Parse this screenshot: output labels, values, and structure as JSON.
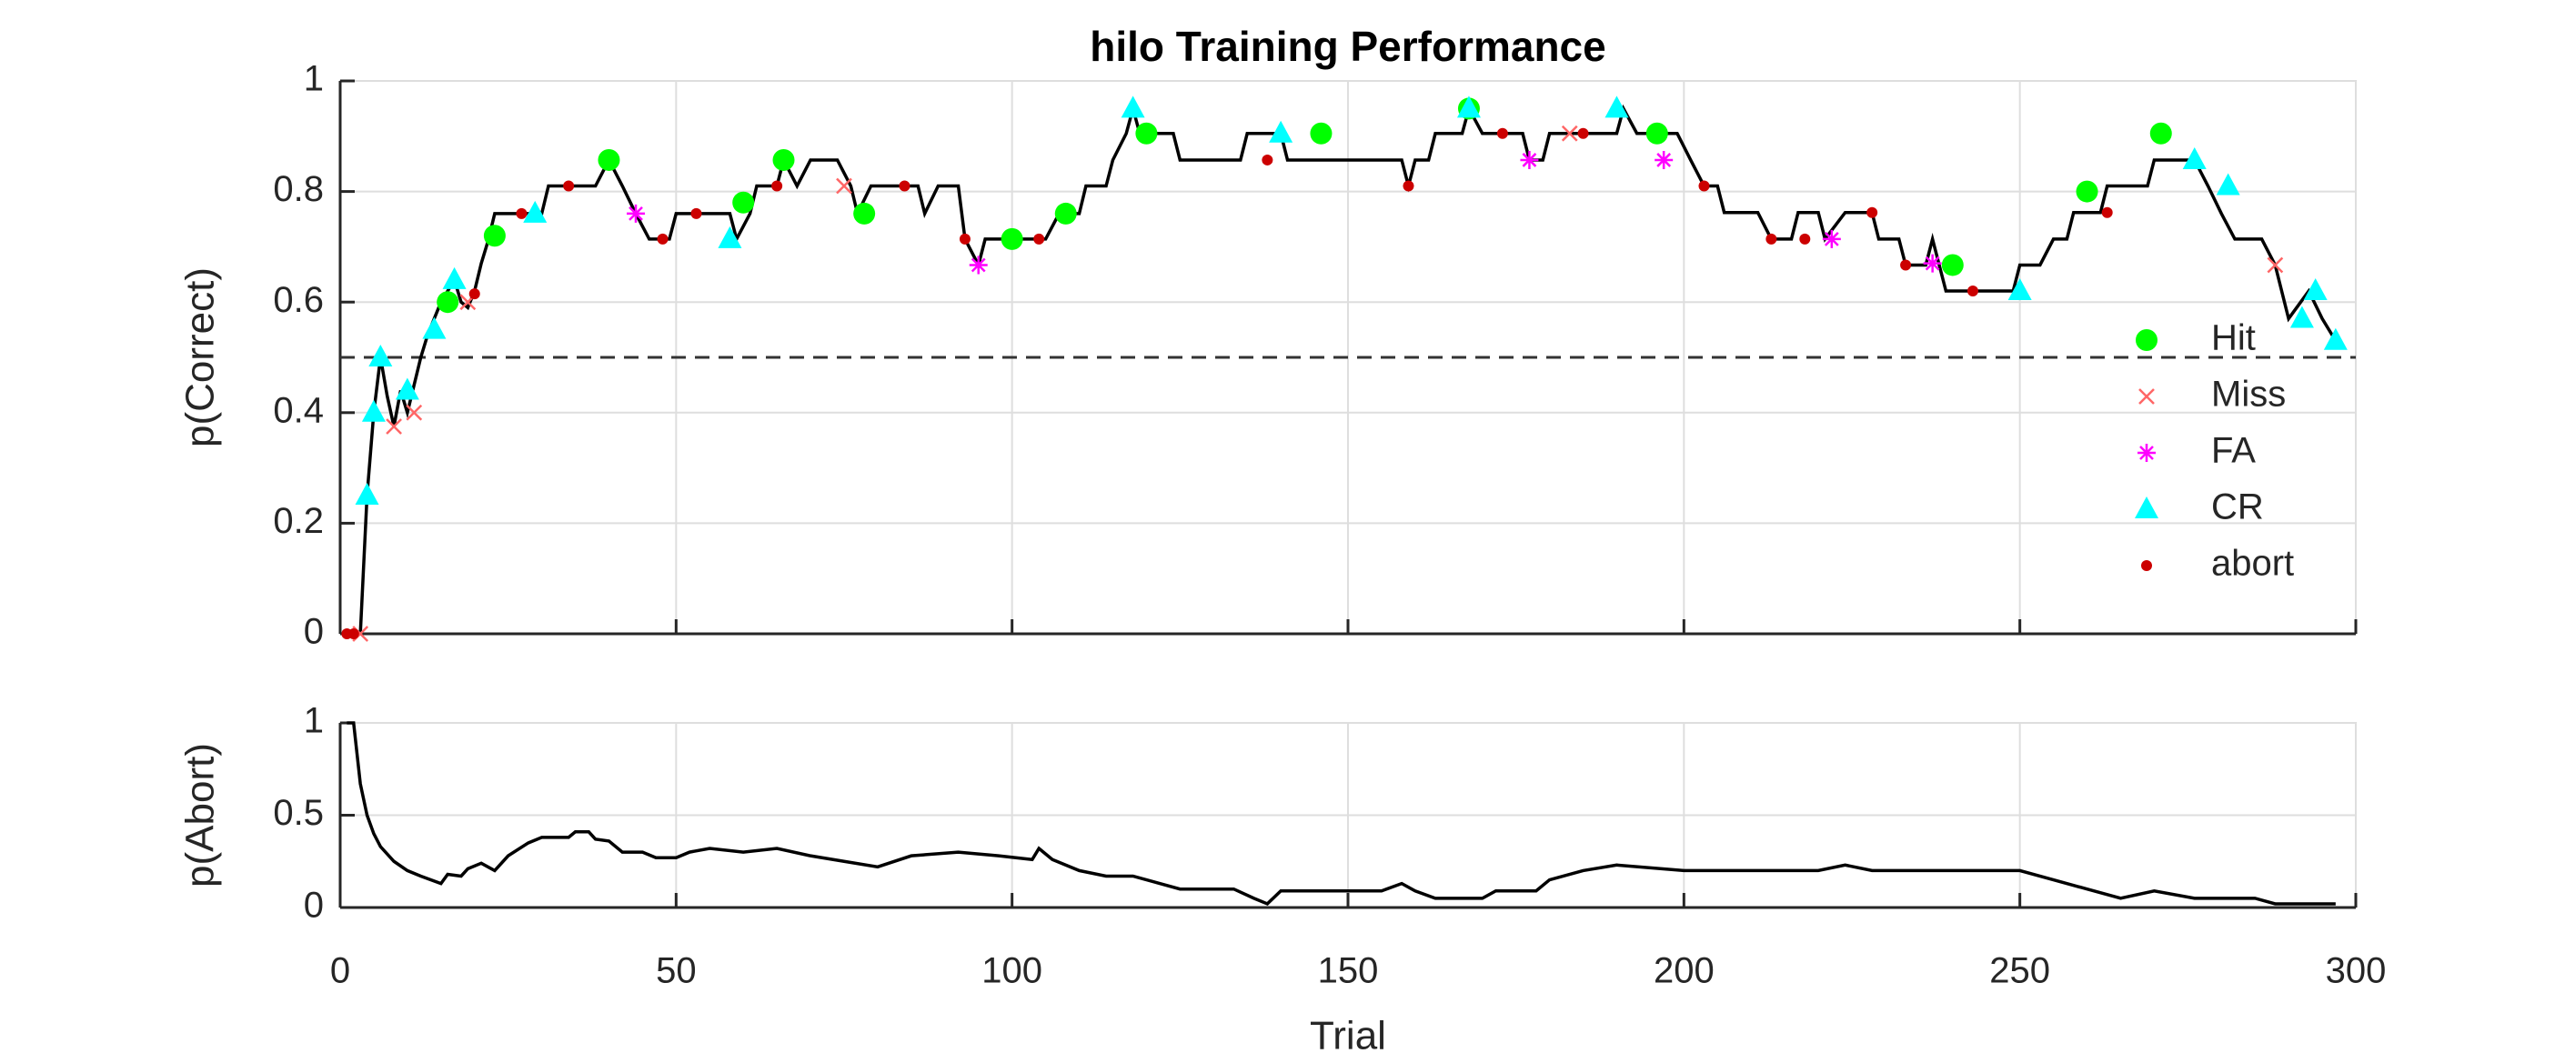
{
  "chart_data": [
    {
      "type": "line",
      "title": "hilo Training Performance",
      "ylabel": "p(Correct)",
      "color": "#000000",
      "grid": true,
      "hline": 0.5,
      "xlim": [
        0,
        300
      ],
      "xticks": [
        0,
        50,
        100,
        150,
        200,
        250,
        300
      ],
      "ylim": [
        0,
        1
      ],
      "yticks": [
        0,
        0.2,
        0.4,
        0.6,
        0.8,
        1
      ],
      "x": [
        1,
        3,
        4,
        5,
        6,
        7,
        8,
        9,
        10,
        11,
        12,
        13,
        14,
        15,
        16,
        17,
        18,
        19,
        20,
        21,
        22,
        23,
        30,
        31,
        38,
        40,
        42,
        44,
        46,
        49,
        50,
        58,
        59,
        61,
        62,
        65,
        66,
        68,
        70,
        74,
        76,
        77,
        79,
        86,
        87,
        89,
        92,
        93,
        95,
        96,
        105,
        107,
        110,
        111,
        114,
        115,
        117,
        118,
        119,
        124,
        125,
        134,
        135,
        140,
        141,
        158,
        159,
        160,
        162,
        163,
        167,
        168,
        170,
        176,
        177,
        179,
        180,
        190,
        191,
        193,
        199,
        201,
        203,
        205,
        206,
        211,
        213,
        216,
        217,
        220,
        221,
        224,
        228,
        229,
        232,
        233,
        236,
        237,
        239,
        249,
        250,
        253,
        255,
        257,
        258,
        262,
        263,
        269,
        270,
        276,
        278,
        280,
        282,
        286,
        288,
        290,
        293,
        295,
        297
      ],
      "values": [
        0,
        0,
        0.25,
        0.4,
        0.5,
        0.43,
        0.375,
        0.44,
        0.4,
        0.45,
        0.5,
        0.54,
        0.57,
        0.6,
        0.62,
        0.64,
        0.6,
        0.59,
        0.62,
        0.67,
        0.71,
        0.76,
        0.76,
        0.81,
        0.81,
        0.857,
        0.81,
        0.76,
        0.714,
        0.714,
        0.76,
        0.76,
        0.714,
        0.76,
        0.81,
        0.81,
        0.857,
        0.81,
        0.857,
        0.857,
        0.81,
        0.76,
        0.81,
        0.81,
        0.76,
        0.81,
        0.81,
        0.714,
        0.667,
        0.714,
        0.714,
        0.76,
        0.76,
        0.81,
        0.81,
        0.857,
        0.905,
        0.95,
        0.905,
        0.905,
        0.857,
        0.857,
        0.905,
        0.905,
        0.857,
        0.857,
        0.81,
        0.857,
        0.857,
        0.905,
        0.905,
        0.95,
        0.905,
        0.905,
        0.857,
        0.857,
        0.905,
        0.905,
        0.95,
        0.905,
        0.905,
        0.857,
        0.81,
        0.81,
        0.762,
        0.762,
        0.714,
        0.714,
        0.762,
        0.762,
        0.714,
        0.762,
        0.762,
        0.714,
        0.714,
        0.667,
        0.667,
        0.714,
        0.62,
        0.62,
        0.667,
        0.667,
        0.714,
        0.714,
        0.762,
        0.762,
        0.81,
        0.81,
        0.857,
        0.857,
        0.81,
        0.76,
        0.714,
        0.714,
        0.667,
        0.57,
        0.62,
        0.57,
        0.53
      ],
      "series": [
        {
          "name": "Hit",
          "color": "#00ff00",
          "marker": "circle",
          "x": [
            16,
            23,
            40,
            60,
            66,
            78,
            100,
            108,
            120,
            146,
            168,
            196,
            240,
            260,
            271
          ],
          "values": [
            0.6,
            0.72,
            0.857,
            0.78,
            0.857,
            0.76,
            0.714,
            0.76,
            0.905,
            0.905,
            0.95,
            0.905,
            0.667,
            0.8,
            0.905
          ]
        },
        {
          "name": "Miss",
          "color": "#ff6666",
          "marker": "x",
          "x": [
            3,
            8,
            11,
            19,
            75,
            183,
            288
          ],
          "values": [
            0,
            0.375,
            0.4,
            0.6,
            0.81,
            0.905,
            0.667
          ]
        },
        {
          "name": "FA",
          "color": "#ff00ff",
          "marker": "star",
          "x": [
            44,
            95,
            177,
            197,
            222,
            237
          ],
          "values": [
            0.76,
            0.667,
            0.857,
            0.857,
            0.714,
            0.67
          ]
        },
        {
          "name": "CR",
          "color": "#00ffff",
          "marker": "triangle",
          "x": [
            4,
            5,
            6,
            10,
            14,
            17,
            29,
            58,
            118,
            140,
            168,
            190,
            250,
            276,
            281,
            292,
            294,
            297
          ],
          "values": [
            0.25,
            0.4,
            0.5,
            0.44,
            0.55,
            0.64,
            0.76,
            0.714,
            0.95,
            0.905,
            0.95,
            0.95,
            0.62,
            0.857,
            0.81,
            0.57,
            0.62,
            0.53
          ]
        },
        {
          "name": "abort",
          "color": "#cc0000",
          "marker": "dot",
          "x": [
            1,
            2,
            20,
            27,
            34,
            48,
            53,
            65,
            84,
            93,
            104,
            138,
            159,
            173,
            185,
            203,
            213,
            218,
            228,
            233,
            243,
            263
          ],
          "values": [
            0,
            0,
            0.615,
            0.76,
            0.81,
            0.714,
            0.76,
            0.81,
            0.81,
            0.714,
            0.714,
            0.857,
            0.81,
            0.905,
            0.905,
            0.81,
            0.714,
            0.714,
            0.762,
            0.667,
            0.62,
            0.762
          ]
        }
      ]
    },
    {
      "type": "line",
      "xlabel": "Trial",
      "ylabel": "p(Abort)",
      "color": "#000000",
      "grid": true,
      "xlim": [
        0,
        300
      ],
      "xticks": [
        0,
        50,
        100,
        150,
        200,
        250,
        300
      ],
      "ylim": [
        0,
        1
      ],
      "yticks": [
        0,
        0.5,
        1
      ],
      "x": [
        1,
        2,
        3,
        4,
        5,
        6,
        8,
        10,
        12,
        15,
        16,
        18,
        19,
        21,
        23,
        25,
        28,
        30,
        34,
        35,
        37,
        38,
        40,
        42,
        45,
        47,
        50,
        52,
        55,
        60,
        65,
        70,
        75,
        80,
        85,
        92,
        98,
        103,
        104,
        106,
        110,
        114,
        118,
        125,
        133,
        136,
        138,
        140,
        155,
        158,
        160,
        163,
        170,
        172,
        178,
        180,
        185,
        190,
        200,
        210,
        220,
        224,
        228,
        240,
        250,
        255,
        260,
        265,
        270,
        276,
        285,
        288,
        297
      ],
      "values": [
        1,
        1,
        0.67,
        0.5,
        0.4,
        0.33,
        0.25,
        0.2,
        0.17,
        0.13,
        0.18,
        0.17,
        0.21,
        0.24,
        0.2,
        0.28,
        0.35,
        0.38,
        0.38,
        0.41,
        0.41,
        0.37,
        0.36,
        0.3,
        0.3,
        0.27,
        0.27,
        0.3,
        0.32,
        0.3,
        0.32,
        0.28,
        0.25,
        0.22,
        0.28,
        0.3,
        0.28,
        0.26,
        0.32,
        0.26,
        0.2,
        0.17,
        0.17,
        0.1,
        0.1,
        0.05,
        0.02,
        0.09,
        0.09,
        0.13,
        0.09,
        0.05,
        0.05,
        0.09,
        0.09,
        0.15,
        0.2,
        0.23,
        0.2,
        0.2,
        0.2,
        0.23,
        0.2,
        0.2,
        0.2,
        0.15,
        0.1,
        0.05,
        0.09,
        0.05,
        0.05,
        0.02,
        0.02
      ]
    }
  ]
}
